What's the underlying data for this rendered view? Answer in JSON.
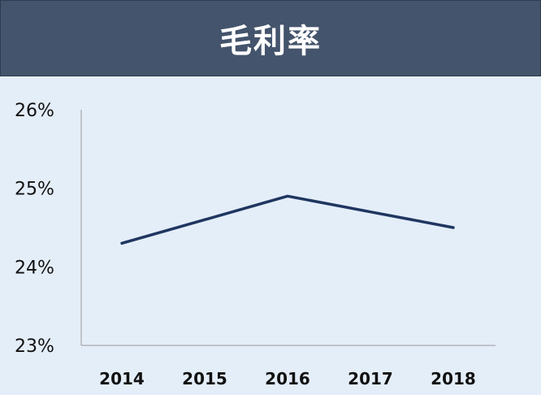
{
  "chart_data": {
    "type": "line",
    "title": "毛利率",
    "x": [
      "2014",
      "2015",
      "2016",
      "2017",
      "2018"
    ],
    "series": [
      {
        "values": [
          24.3,
          24.6,
          24.9,
          24.7,
          24.5
        ]
      }
    ],
    "y_ticks": [
      "26%",
      "25%",
      "24%",
      "23%"
    ],
    "ylim": [
      23,
      26
    ],
    "grid": false,
    "colors": {
      "line": "#1f3660",
      "axis": "#9a9a9a",
      "title_bg": "#44546c",
      "bg": "#e4eef9"
    }
  }
}
